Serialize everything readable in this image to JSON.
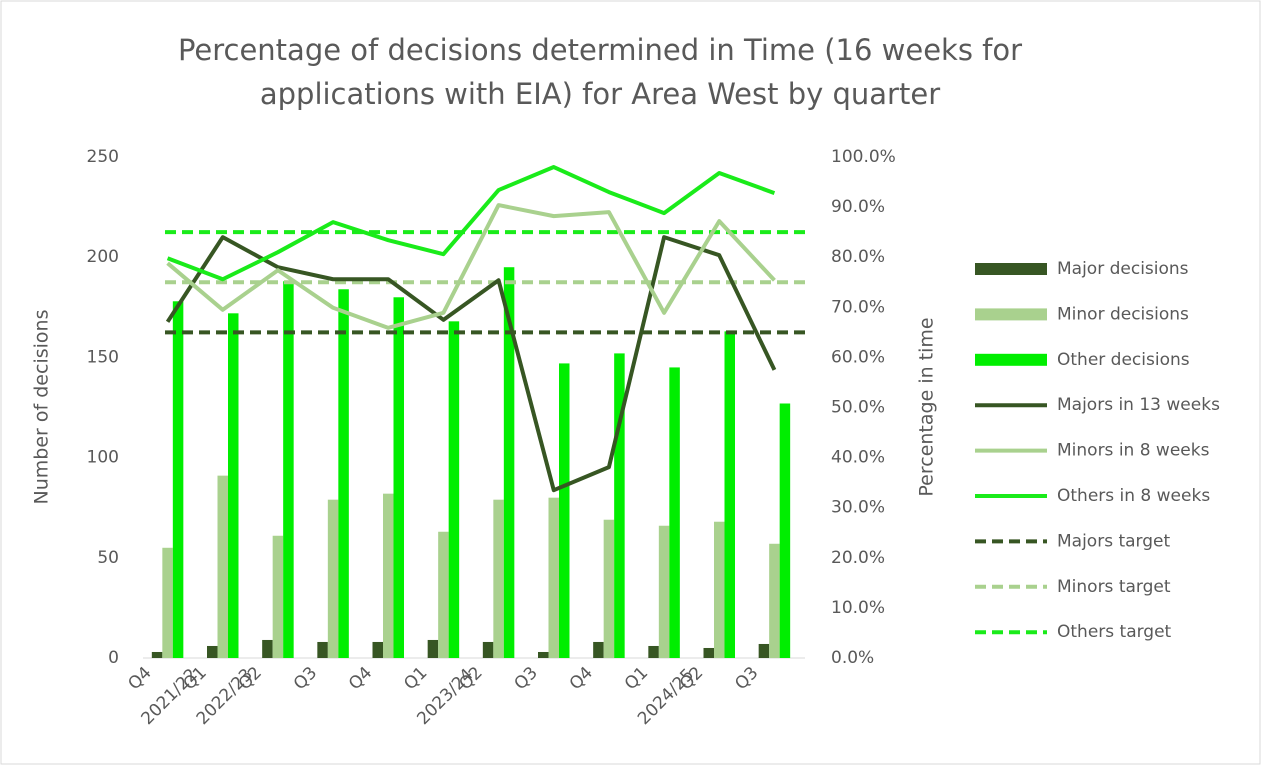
{
  "chart_data": {
    "type": "bar-line",
    "title": [
      "Percentage of decisions determined in Time (16 weeks for",
      "applications with EIA) for Area West by quarter"
    ],
    "y_label": "Number of decisions",
    "y2_label": "Percentage in time",
    "categories": [
      "Q4",
      "Q1",
      "Q2",
      "Q3",
      "Q4",
      "Q1",
      "Q2",
      "Q3",
      "Q4",
      "Q1",
      "Q2",
      "Q3"
    ],
    "category_groups": [
      "2021/22",
      "2022/23",
      null,
      null,
      null,
      "2023/24",
      null,
      null,
      null,
      "2024/25",
      null,
      null
    ],
    "ylim": [
      0,
      250
    ],
    "yticks": [
      0,
      50,
      100,
      150,
      200,
      250
    ],
    "y2lim": [
      0,
      100
    ],
    "y2ticks": [
      {
        "value": 0,
        "label": "0.0%"
      },
      {
        "value": 10,
        "label": "10.0%"
      },
      {
        "value": 20,
        "label": "20.0%"
      },
      {
        "value": 30,
        "label": "30.0%"
      },
      {
        "value": 40,
        "label": "40.0%"
      },
      {
        "value": 50,
        "label": "50.0%"
      },
      {
        "value": 60,
        "label": "60.0%"
      },
      {
        "value": 70,
        "label": "70.0%"
      },
      {
        "value": 80,
        "label": "80.0%"
      },
      {
        "value": 90,
        "label": "90.0%"
      },
      {
        "value": 100,
        "label": "100.0%"
      }
    ],
    "legend": "right",
    "series": [
      {
        "name": "Major decisions",
        "type": "bar",
        "color": "#375623",
        "values": [
          3,
          6,
          9,
          8,
          8,
          9,
          8,
          3,
          8,
          6,
          5,
          7
        ]
      },
      {
        "name": "Minor decisions",
        "type": "bar",
        "color": "#a9d18e",
        "values": [
          55,
          91,
          61,
          79,
          82,
          63,
          79,
          80,
          69,
          66,
          68,
          57
        ]
      },
      {
        "name": "Other decisions",
        "type": "bar",
        "color": "#00ee00",
        "values": [
          178,
          172,
          188,
          184,
          180,
          168,
          195,
          147,
          152,
          145,
          163,
          127
        ]
      },
      {
        "name": "Majors in 13 weeks",
        "type": "line",
        "axis": "y2",
        "color": "#375623",
        "values": [
          67.1,
          84.0,
          78.0,
          75.6,
          75.6,
          67.5,
          75.4,
          33.5,
          38.1,
          84.0,
          80.4,
          57.5
        ]
      },
      {
        "name": "Minors in 8 weeks",
        "type": "line",
        "axis": "y2",
        "color": "#a9d18e",
        "values": [
          78.8,
          69.5,
          77.4,
          69.9,
          65.9,
          68.9,
          90.4,
          88.2,
          89.0,
          68.9,
          87.2,
          75.4
        ]
      },
      {
        "name": "Others in 8 weeks",
        "type": "line",
        "axis": "y2",
        "color": "#1aeb1a",
        "values": [
          79.8,
          75.6,
          81.0,
          87.0,
          83.4,
          80.6,
          93.4,
          98.0,
          93.0,
          88.8,
          96.8,
          92.8
        ]
      },
      {
        "name": "Majors target",
        "type": "target",
        "axis": "y2",
        "color": "#375623",
        "value": 65
      },
      {
        "name": "Minors target",
        "type": "target",
        "axis": "y2",
        "color": "#a9d18e",
        "value": 75
      },
      {
        "name": "Others target",
        "type": "target",
        "axis": "y2",
        "color": "#1aeb1a",
        "value": 85
      }
    ]
  }
}
